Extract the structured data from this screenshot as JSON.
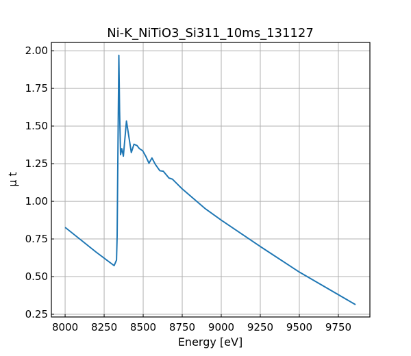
{
  "chart_data": {
    "type": "line",
    "title": "Ni-K_NiTiO3_Si311_10ms_131127",
    "xlabel": "Energy [eV]",
    "ylabel": "μ t",
    "xlim": [
      7912,
      9952
    ],
    "ylim": [
      0.232,
      2.055
    ],
    "grid": true,
    "xticks": [
      8000,
      8250,
      8500,
      8750,
      9000,
      9250,
      9500,
      9750
    ],
    "yticks": [
      0.25,
      0.5,
      0.75,
      1.0,
      1.25,
      1.5,
      1.75,
      2.0
    ],
    "ytick_labels": [
      "0.25",
      "0.50",
      "0.75",
      "1.00",
      "1.25",
      "1.50",
      "1.75",
      "2.00"
    ],
    "color": "#1f77b4",
    "series": [
      {
        "name": "mu_t",
        "x": [
          8000,
          8197,
          8314,
          8329,
          8333,
          8338,
          8344,
          8349,
          8355,
          8363,
          8373,
          8393,
          8424,
          8441,
          8461,
          8475,
          8497,
          8516,
          8537,
          8556,
          8578,
          8607,
          8629,
          8665,
          8687,
          8746,
          8899,
          9000,
          9250,
          9500,
          9860
        ],
        "y": [
          0.827,
          0.664,
          0.573,
          0.61,
          0.77,
          1.3,
          1.97,
          1.6,
          1.31,
          1.35,
          1.3,
          1.533,
          1.324,
          1.379,
          1.37,
          1.351,
          1.336,
          1.3,
          1.253,
          1.288,
          1.245,
          1.203,
          1.2,
          1.155,
          1.147,
          1.086,
          0.95,
          0.875,
          0.7,
          0.53,
          0.314
        ]
      }
    ]
  }
}
